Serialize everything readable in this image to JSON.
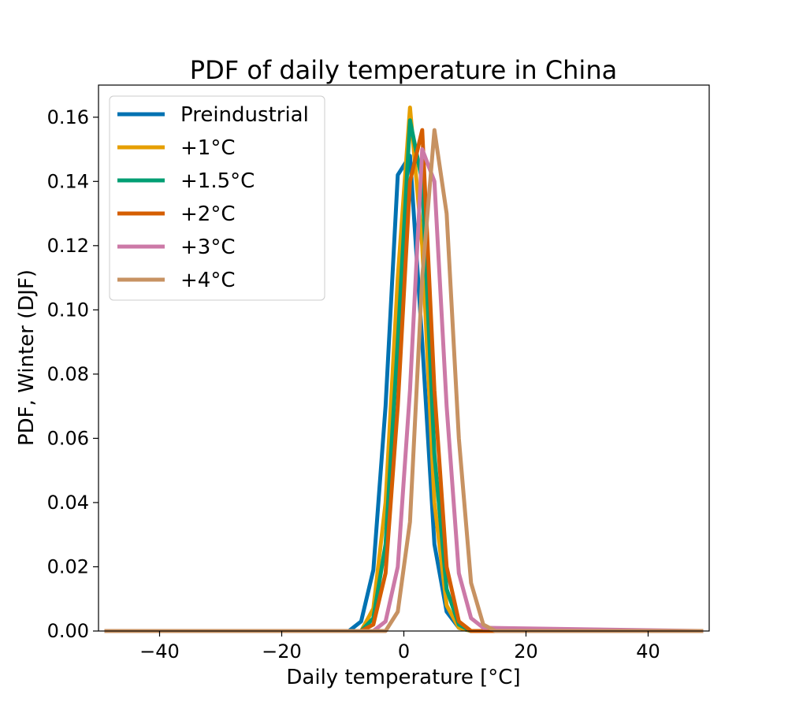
{
  "chart_data": {
    "type": "line",
    "title": "PDF of daily temperature in China",
    "xlabel": "Daily temperature [°C]",
    "ylabel": "PDF, Winter (DJF)",
    "xlim": [
      -50,
      50
    ],
    "ylim": [
      0,
      0.17
    ],
    "xticks": [
      -40,
      -20,
      0,
      20,
      40
    ],
    "xtick_labels": [
      "−40",
      "−20",
      "0",
      "20",
      "40"
    ],
    "yticks": [
      0.0,
      0.02,
      0.04,
      0.06,
      0.08,
      0.1,
      0.12,
      0.14,
      0.16
    ],
    "ytick_labels": [
      "0.00",
      "0.02",
      "0.04",
      "0.06",
      "0.08",
      "0.10",
      "0.12",
      "0.14",
      "0.16"
    ],
    "grid": false,
    "legend_position": "top-left",
    "series": [
      {
        "name": "Preindustrial",
        "color": "#0072b2",
        "x": [
          -49,
          -9,
          -7,
          -5,
          -3,
          -1,
          1,
          3,
          5,
          7,
          9,
          11,
          49
        ],
        "y": [
          0,
          0,
          0.003,
          0.019,
          0.07,
          0.142,
          0.148,
          0.09,
          0.027,
          0.006,
          0.001,
          0,
          0
        ]
      },
      {
        "name": "+1°C",
        "color": "#e69f00",
        "x": [
          -49,
          -7,
          -5,
          -3,
          -1,
          1,
          3,
          5,
          7,
          9,
          11,
          49
        ],
        "y": [
          0,
          0,
          0.007,
          0.04,
          0.11,
          0.163,
          0.12,
          0.04,
          0.008,
          0.001,
          0,
          0
        ]
      },
      {
        "name": "+1.5°C",
        "color": "#009e73",
        "x": [
          -49,
          -7,
          -5,
          -3,
          -1,
          1,
          3,
          5,
          7,
          9,
          11,
          49
        ],
        "y": [
          0,
          0,
          0.004,
          0.027,
          0.09,
          0.159,
          0.14,
          0.055,
          0.013,
          0.002,
          0,
          0
        ]
      },
      {
        "name": "+2°C",
        "color": "#d55e00",
        "x": [
          -49,
          -7,
          -5,
          -3,
          -1,
          1,
          3,
          5,
          7,
          9,
          11,
          49
        ],
        "y": [
          0,
          0,
          0.002,
          0.018,
          0.07,
          0.14,
          0.156,
          0.075,
          0.02,
          0.003,
          0,
          0
        ]
      },
      {
        "name": "+3°C",
        "color": "#cc79a7",
        "x": [
          -49,
          -5,
          -3,
          -1,
          1,
          3,
          5,
          7,
          9,
          11,
          13,
          49
        ],
        "y": [
          0,
          0,
          0.003,
          0.02,
          0.075,
          0.15,
          0.14,
          0.07,
          0.018,
          0.004,
          0.001,
          0
        ]
      },
      {
        "name": "+4°C",
        "color": "#c79262",
        "x": [
          -49,
          -3,
          -1,
          1,
          3,
          5,
          7,
          9,
          11,
          13,
          15,
          49
        ],
        "y": [
          0,
          0,
          0.006,
          0.034,
          0.11,
          0.156,
          0.13,
          0.06,
          0.015,
          0.002,
          0,
          0
        ]
      }
    ]
  }
}
